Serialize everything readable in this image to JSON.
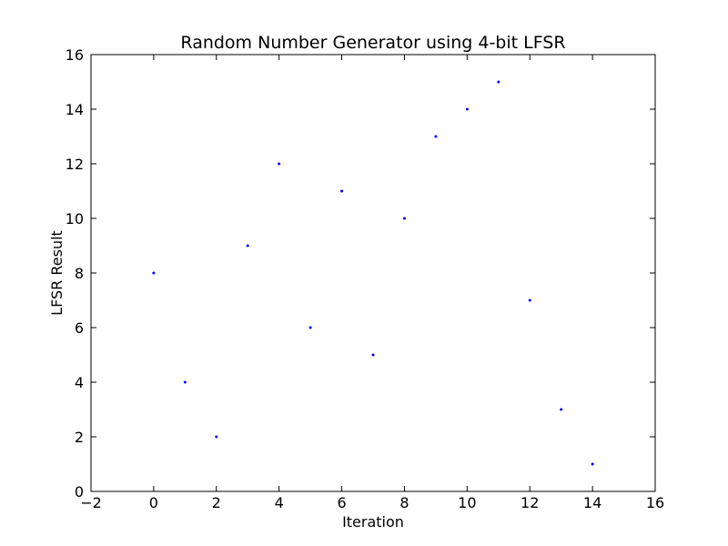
{
  "chart_data": {
    "type": "scatter",
    "title": "Random Number Generator using 4-bit LFSR",
    "xlabel": "Iteration",
    "ylabel": "LFSR Result",
    "xlim": [
      -2,
      16
    ],
    "ylim": [
      0,
      16
    ],
    "xticks": [
      -2,
      0,
      2,
      4,
      6,
      8,
      10,
      12,
      14,
      16
    ],
    "yticks": [
      0,
      2,
      4,
      6,
      8,
      10,
      12,
      14,
      16
    ],
    "xtick_labels": [
      "−2",
      "0",
      "2",
      "4",
      "6",
      "8",
      "10",
      "12",
      "14",
      "16"
    ],
    "ytick_labels": [
      "0",
      "2",
      "4",
      "6",
      "8",
      "10",
      "12",
      "14",
      "16"
    ],
    "grid": false,
    "marker_color": "#0000ff",
    "series": [
      {
        "x": [
          0,
          1,
          2,
          3,
          4,
          5,
          6,
          7,
          8,
          9,
          10,
          11,
          12,
          13,
          14
        ],
        "y": [
          8,
          4,
          2,
          9,
          12,
          6,
          11,
          5,
          10,
          13,
          14,
          15,
          7,
          3,
          1
        ]
      }
    ]
  }
}
